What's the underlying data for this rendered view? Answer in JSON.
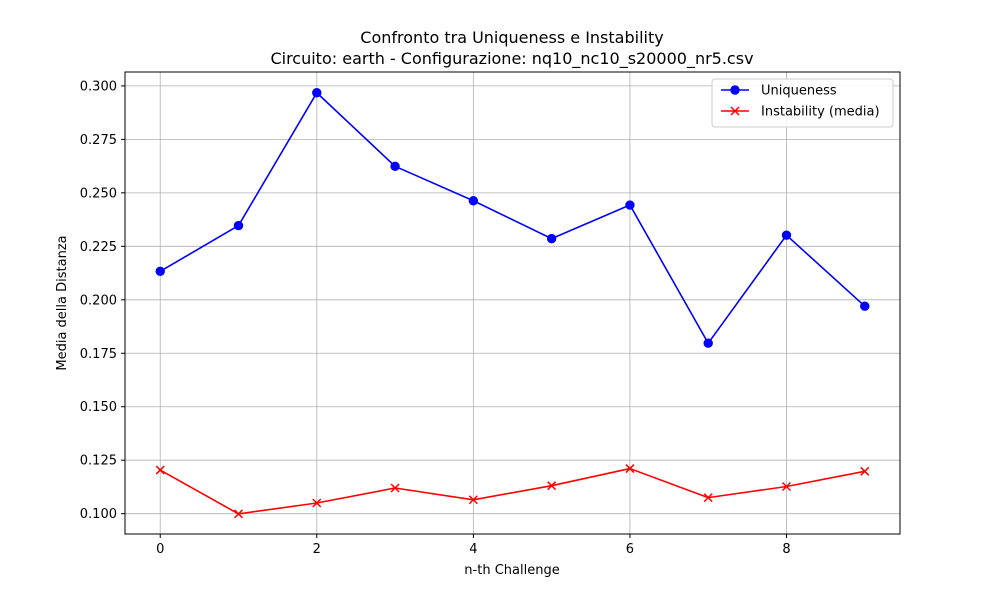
{
  "chart_data": {
    "type": "line",
    "title": "Confronto tra Uniqueness e Instability",
    "subtitle": "Circuito: earth - Configurazione: nq10_nc10_s20000_nr5.csv",
    "xlabel": "n-th Challenge",
    "ylabel": "Media della Distanza",
    "x": [
      0,
      1,
      2,
      3,
      4,
      5,
      6,
      7,
      8,
      9
    ],
    "xlim": [
      -0.45,
      9.45
    ],
    "ylim": [
      0.0905,
      0.3065
    ],
    "xticks": [
      0,
      2,
      4,
      6,
      8
    ],
    "xtick_labels": [
      "0",
      "2",
      "4",
      "6",
      "8"
    ],
    "yticks": [
      0.1,
      0.125,
      0.15,
      0.175,
      0.2,
      0.225,
      0.25,
      0.275,
      0.3
    ],
    "ytick_labels": [
      "0.100",
      "0.125",
      "0.150",
      "0.175",
      "0.200",
      "0.225",
      "0.250",
      "0.275",
      "0.300"
    ],
    "grid": true,
    "legend_position": "top-right",
    "series": [
      {
        "name": "Uniqueness",
        "color": "#0000ff",
        "marker": "circle",
        "values": [
          0.2133,
          0.2347,
          0.2968,
          0.2624,
          0.2463,
          0.2286,
          0.2443,
          0.1797,
          0.2302,
          0.197
        ]
      },
      {
        "name": "Instability (media)",
        "color": "#ff0000",
        "marker": "x",
        "values": [
          0.1204,
          0.0999,
          0.105,
          0.112,
          0.1065,
          0.1131,
          0.1211,
          0.1075,
          0.1127,
          0.1198
        ]
      }
    ]
  }
}
